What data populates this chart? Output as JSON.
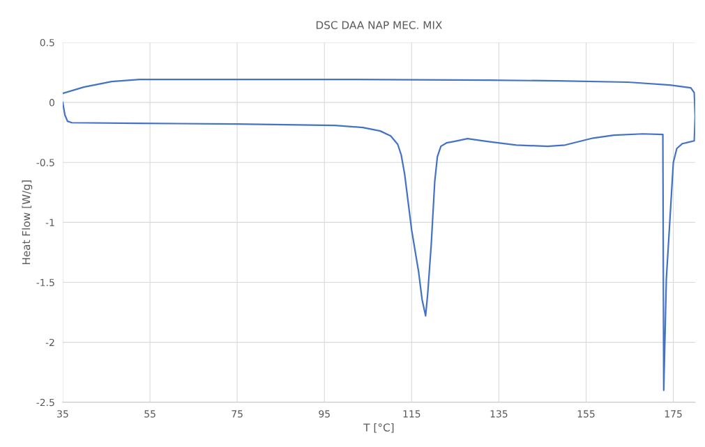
{
  "chart_data": {
    "type": "line",
    "title": "DSC DAA NAP MEC. MIX",
    "xlabel": "T [°C]",
    "ylabel": "Heat Flow [W/g]",
    "xlim": [
      35,
      180
    ],
    "xticks": [
      35,
      55,
      75,
      95,
      115,
      135,
      155,
      175
    ],
    "ylim": [
      -2.5,
      0.5
    ],
    "yticks": [
      -2.5,
      -2,
      -1.5,
      -1,
      -0.5,
      0,
      0.5
    ],
    "grid": true,
    "legend": false,
    "marker": "none",
    "line_style": "solid",
    "series": [
      {
        "color": "#4472c4",
        "x": [
          35,
          35.5,
          36.1,
          37.1,
          52.6,
          75,
          97.4,
          103.8,
          107.8,
          110.2,
          111.8,
          112.6,
          113.4,
          114.2,
          115,
          116.6,
          117.4,
          118.2,
          118.7,
          119.5,
          120.3,
          120.9,
          121.7,
          123,
          124.6,
          127.8,
          132.6,
          139,
          146.2,
          150.2,
          156.6,
          161.4,
          168,
          172.6,
          172.8,
          173.4,
          174.2,
          175,
          175.8,
          177.1,
          177.9,
          179.8,
          180,
          179.8,
          179,
          174.2,
          164.6,
          148.6,
          132.6,
          100.6,
          68.6,
          52.6,
          46.2,
          43,
          39.8,
          35
        ],
        "values": [
          0,
          -0.105,
          -0.157,
          -0.169,
          -0.174,
          -0.18,
          -0.192,
          -0.209,
          -0.238,
          -0.279,
          -0.349,
          -0.436,
          -0.599,
          -0.831,
          -1.064,
          -1.413,
          -1.645,
          -1.779,
          -1.587,
          -1.18,
          -0.657,
          -0.453,
          -0.366,
          -0.337,
          -0.326,
          -0.302,
          -0.326,
          -0.355,
          -0.366,
          -0.355,
          -0.297,
          -0.273,
          -0.262,
          -0.267,
          -2.4,
          -1.471,
          -0.988,
          -0.5,
          -0.384,
          -0.343,
          -0.337,
          -0.32,
          -0.116,
          0.081,
          0.122,
          0.145,
          0.169,
          0.18,
          0.186,
          0.192,
          0.192,
          0.192,
          0.174,
          0.151,
          0.128,
          0.076
        ]
      }
    ]
  }
}
